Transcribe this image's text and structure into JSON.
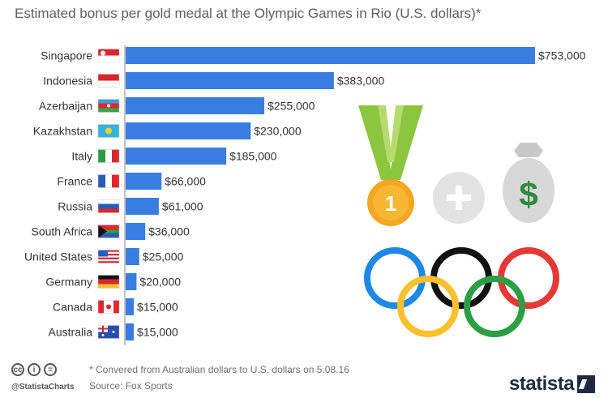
{
  "title": "Estimated bonus per gold medal at the Olympic Games in Rio (U.S. dollars)*",
  "footnote": "* Convered from Australian dollars to U.S. dollars on 5.08.16",
  "source": "Source: Fox Sports",
  "handle": "@StatistaCharts",
  "brand": "statista",
  "colors": {
    "bar": "#3a7de0",
    "axis": "#888888"
  },
  "icons": [
    "creative-commons-icon",
    "attribution-icon",
    "no-derivatives-icon",
    "medal-icon",
    "plus-icon",
    "money-bag-icon",
    "olympic-rings-icon"
  ],
  "medal_number": "1",
  "chart_data": {
    "type": "bar",
    "orientation": "horizontal",
    "categories": [
      "Singapore",
      "Indonesia",
      "Azerbaijan",
      "Kazakhstan",
      "Italy",
      "France",
      "Russia",
      "South Africa",
      "United States",
      "Germany",
      "Canada",
      "Australia"
    ],
    "values": [
      753000,
      383000,
      255000,
      230000,
      185000,
      66000,
      61000,
      36000,
      25000,
      20000,
      15000,
      15000
    ],
    "labels": [
      "$753,000",
      "$383,000",
      "$255,000",
      "$230,000",
      "$185,000",
      "$66,000",
      "$61,000",
      "$36,000",
      "$25,000",
      "$20,000",
      "$15,000",
      "$15,000"
    ],
    "flags": [
      "singapore",
      "indonesia",
      "azerbaijan",
      "kazakhstan",
      "italy",
      "france",
      "russia",
      "south-africa",
      "united-states",
      "germany",
      "canada",
      "australia"
    ],
    "title": "Estimated bonus per gold medal at the Olympic Games in Rio (U.S. dollars)*",
    "xlabel": "",
    "ylabel": "",
    "xlim": [
      0,
      753000
    ],
    "grid": false
  }
}
